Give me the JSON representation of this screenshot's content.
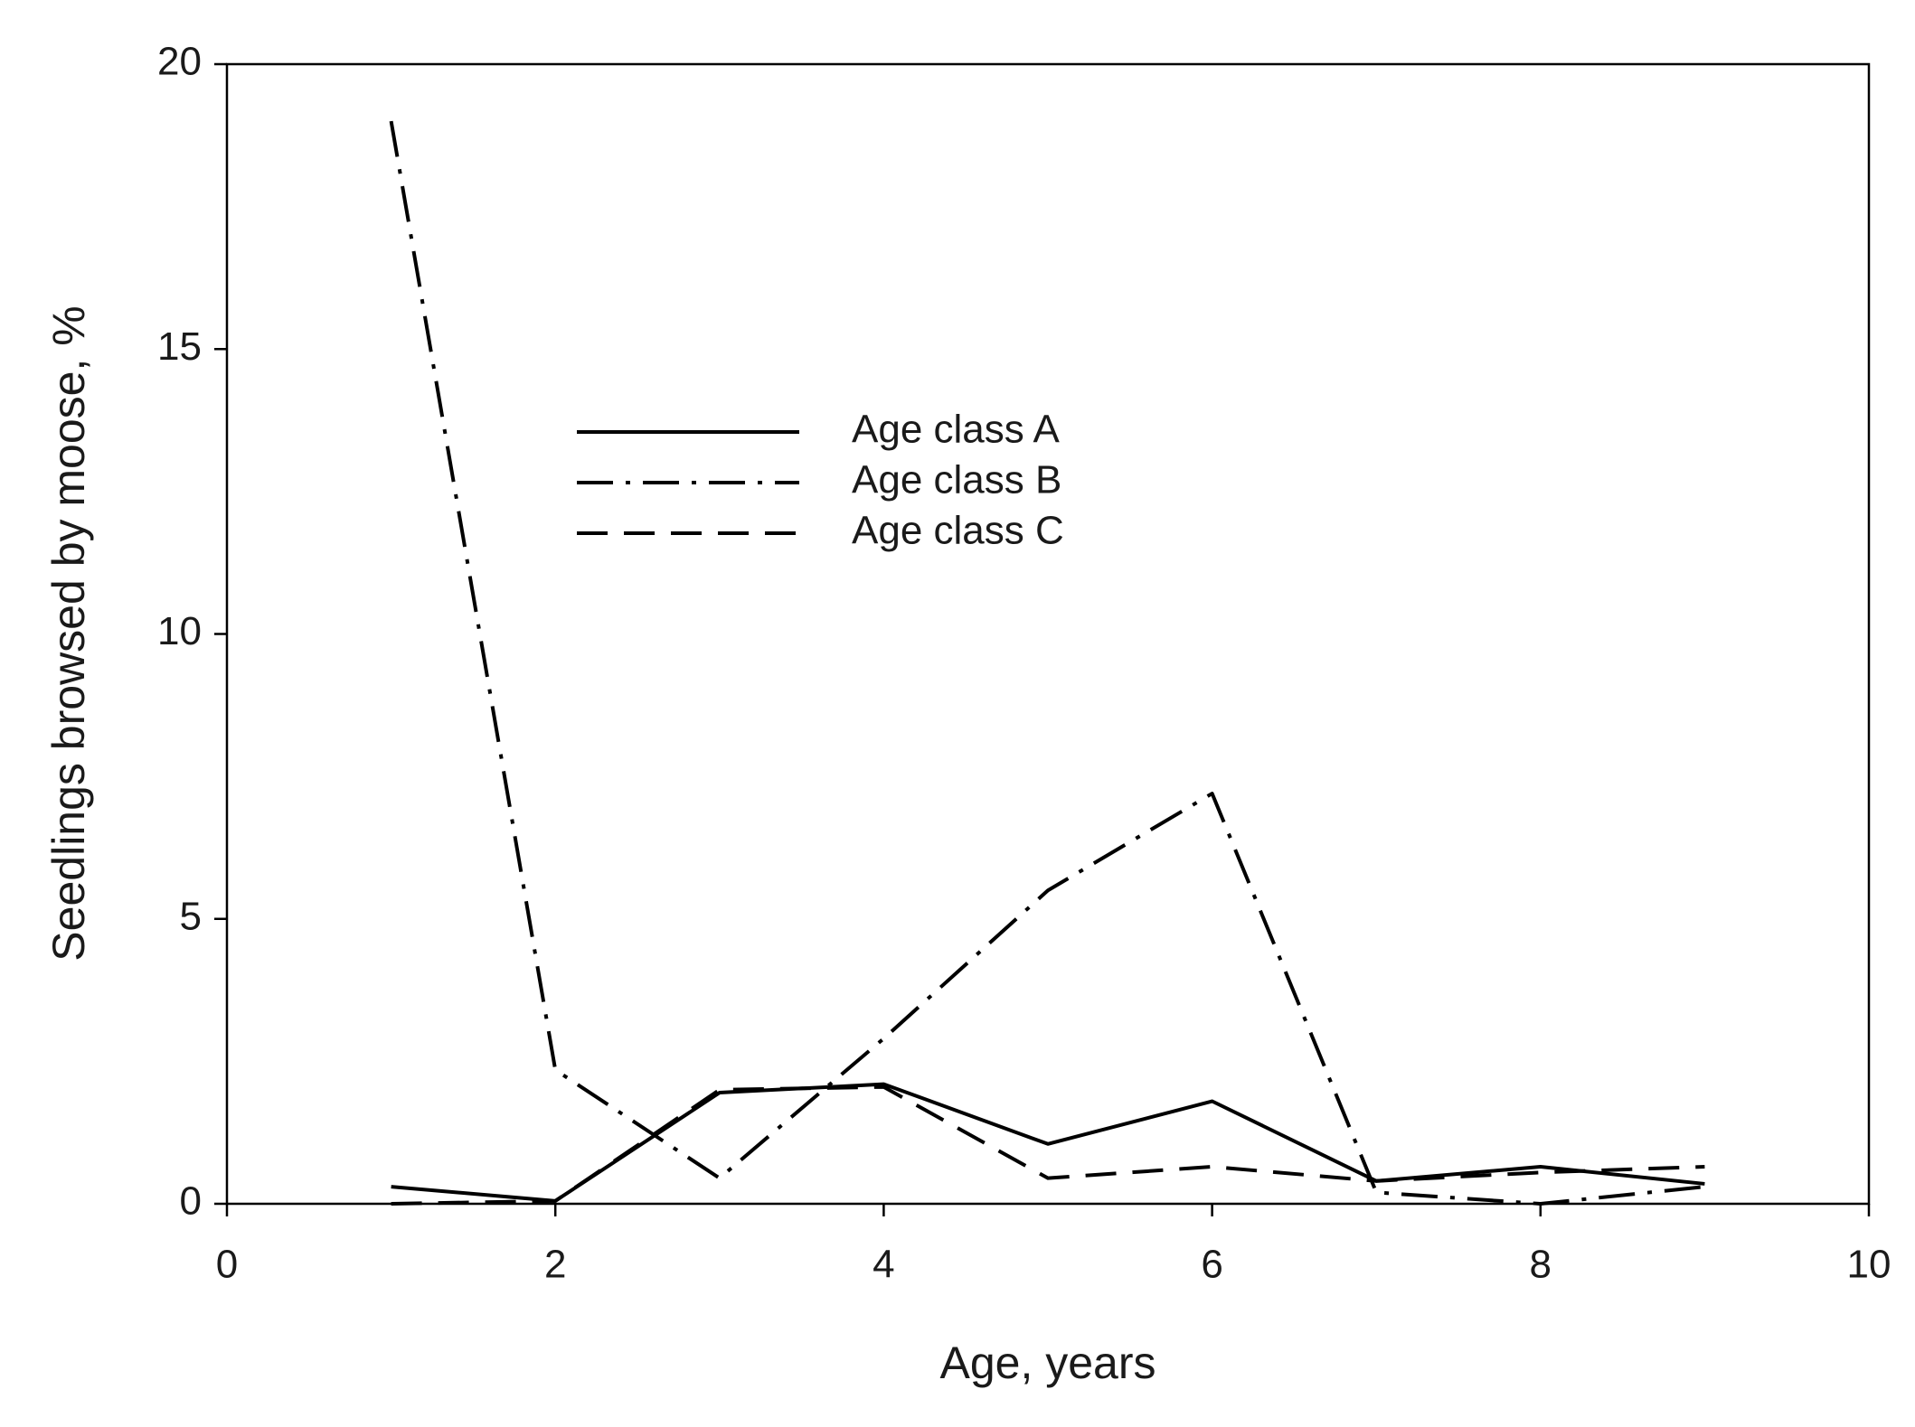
{
  "chart_data": {
    "type": "line",
    "xlabel": "Age, years",
    "ylabel": "Seedlings browsed by moose, %",
    "x": [
      1,
      2,
      3,
      4,
      5,
      6,
      7,
      8,
      9
    ],
    "series": [
      {
        "name": "Age class A",
        "color": "#000000",
        "linestyle": "solid",
        "values": [
          0.3,
          0.05,
          1.95,
          2.1,
          1.05,
          1.8,
          0.4,
          0.65,
          0.35
        ]
      },
      {
        "name": "Age class B",
        "color": "#000000",
        "linestyle": "dashdot",
        "values": [
          19,
          2.35,
          0.45,
          2.9,
          5.5,
          7.2,
          0.2,
          0.0,
          0.3
        ]
      },
      {
        "name": "Age class C",
        "color": "#000000",
        "linestyle": "dashed",
        "values": [
          0,
          0.05,
          2.0,
          2.05,
          0.45,
          0.65,
          0.4,
          0.55,
          0.65
        ]
      }
    ],
    "xlim": [
      0,
      10
    ],
    "xticks": [
      0,
      2,
      4,
      6,
      8,
      10
    ],
    "ylim": [
      0,
      20
    ],
    "yticks": [
      0,
      5,
      10,
      15,
      20
    ],
    "grid": false
  }
}
